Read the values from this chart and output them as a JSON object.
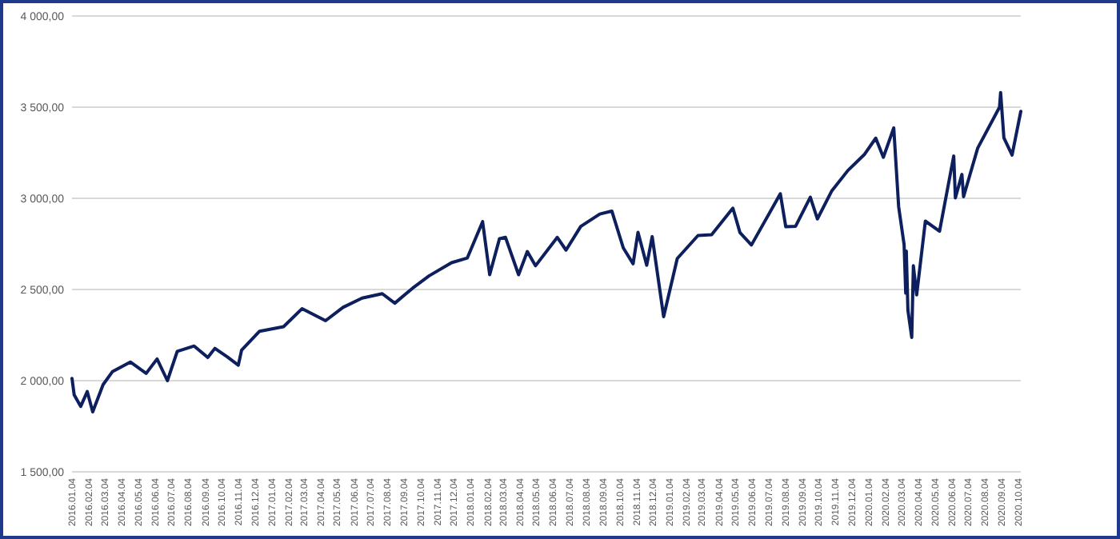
{
  "chart_data": {
    "type": "line",
    "grid": "y",
    "xlim": [
      "2016-01-04",
      "2020-10-09"
    ],
    "ylim": [
      1500,
      4000
    ],
    "yticks": [
      {
        "value": 1500,
        "label": "1 500,00"
      },
      {
        "value": 2000,
        "label": "2 000,00"
      },
      {
        "value": 2500,
        "label": "2 500,00"
      },
      {
        "value": 3000,
        "label": "3 000,00"
      },
      {
        "value": 3500,
        "label": "3 500,00"
      },
      {
        "value": 4000,
        "label": "4 000,00"
      }
    ],
    "xticks": [
      {
        "value": "2016-01-04",
        "label": "2016.01.04"
      },
      {
        "value": "2016-02-04",
        "label": "2016.02.04"
      },
      {
        "value": "2016-03-04",
        "label": "2016.03.04"
      },
      {
        "value": "2016-04-04",
        "label": "2016.04.04"
      },
      {
        "value": "2016-05-04",
        "label": "2016.05.04"
      },
      {
        "value": "2016-06-04",
        "label": "2016.06.04"
      },
      {
        "value": "2016-07-04",
        "label": "2016.07.04"
      },
      {
        "value": "2016-08-04",
        "label": "2016.08.04"
      },
      {
        "value": "2016-09-04",
        "label": "2016.09.04"
      },
      {
        "value": "2016-10-04",
        "label": "2016.10.04"
      },
      {
        "value": "2016-11-04",
        "label": "2016.11.04"
      },
      {
        "value": "2016-12-04",
        "label": "2016.12.04"
      },
      {
        "value": "2017-01-04",
        "label": "2017.01.04"
      },
      {
        "value": "2017-02-04",
        "label": "2017.02.04"
      },
      {
        "value": "2017-03-04",
        "label": "2017.03.04"
      },
      {
        "value": "2017-04-04",
        "label": "2017.04.04"
      },
      {
        "value": "2017-05-04",
        "label": "2017.05.04"
      },
      {
        "value": "2017-06-04",
        "label": "2017.06.04"
      },
      {
        "value": "2017-07-04",
        "label": "2017.07.04"
      },
      {
        "value": "2017-08-04",
        "label": "2017.08.04"
      },
      {
        "value": "2017-09-04",
        "label": "2017.09.04"
      },
      {
        "value": "2017-10-04",
        "label": "2017.10.04"
      },
      {
        "value": "2017-11-04",
        "label": "2017.11.04"
      },
      {
        "value": "2017-12-04",
        "label": "2017.12.04"
      },
      {
        "value": "2018-01-04",
        "label": "2018.01.04"
      },
      {
        "value": "2018-02-04",
        "label": "2018.02.04"
      },
      {
        "value": "2018-03-04",
        "label": "2018.03.04"
      },
      {
        "value": "2018-04-04",
        "label": "2018.04.04"
      },
      {
        "value": "2018-05-04",
        "label": "2018.05.04"
      },
      {
        "value": "2018-06-04",
        "label": "2018.06.04"
      },
      {
        "value": "2018-07-04",
        "label": "2018.07.04"
      },
      {
        "value": "2018-08-04",
        "label": "2018.08.04"
      },
      {
        "value": "2018-09-04",
        "label": "2018.09.04"
      },
      {
        "value": "2018-10-04",
        "label": "2018.10.04"
      },
      {
        "value": "2018-11-04",
        "label": "2018.11.04"
      },
      {
        "value": "2018-12-04",
        "label": "2018.12.04"
      },
      {
        "value": "2019-01-04",
        "label": "2019.01.04"
      },
      {
        "value": "2019-02-04",
        "label": "2019.02.04"
      },
      {
        "value": "2019-03-04",
        "label": "2019.03.04"
      },
      {
        "value": "2019-04-04",
        "label": "2019.04.04"
      },
      {
        "value": "2019-05-04",
        "label": "2019.05.04"
      },
      {
        "value": "2019-06-04",
        "label": "2019.06.04"
      },
      {
        "value": "2019-07-04",
        "label": "2019.07.04"
      },
      {
        "value": "2019-08-04",
        "label": "2019.08.04"
      },
      {
        "value": "2019-09-04",
        "label": "2019.09.04"
      },
      {
        "value": "2019-10-04",
        "label": "2019.10.04"
      },
      {
        "value": "2019-11-04",
        "label": "2019.11.04"
      },
      {
        "value": "2019-12-04",
        "label": "2019.12.04"
      },
      {
        "value": "2020-01-04",
        "label": "2020.01.04"
      },
      {
        "value": "2020-02-04",
        "label": "2020.02.04"
      },
      {
        "value": "2020-03-04",
        "label": "2020.03.04"
      },
      {
        "value": "2020-04-04",
        "label": "2020.04.04"
      },
      {
        "value": "2020-05-04",
        "label": "2020.05.04"
      },
      {
        "value": "2020-06-04",
        "label": "2020.06.04"
      },
      {
        "value": "2020-07-04",
        "label": "2020.07.04"
      },
      {
        "value": "2020-08-04",
        "label": "2020.08.04"
      },
      {
        "value": "2020-09-04",
        "label": "2020.09.04"
      },
      {
        "value": "2020-10-04",
        "label": "2020.10.04"
      }
    ],
    "series": [
      {
        "color": "#0d1f5c",
        "x": [
          "2016-01-04",
          "2016-01-08",
          "2016-01-20",
          "2016-02-01",
          "2016-02-11",
          "2016-03-01",
          "2016-03-18",
          "2016-04-20",
          "2016-05-19",
          "2016-06-08",
          "2016-06-27",
          "2016-07-15",
          "2016-08-15",
          "2016-09-09",
          "2016-09-22",
          "2016-10-14",
          "2016-11-04",
          "2016-11-10",
          "2016-12-13",
          "2017-01-26",
          "2017-03-01",
          "2017-04-13",
          "2017-05-15",
          "2017-06-19",
          "2017-07-26",
          "2017-08-18",
          "2017-09-20",
          "2017-10-20",
          "2017-11-30",
          "2017-12-29",
          "2018-01-26",
          "2018-02-08",
          "2018-02-26",
          "2018-03-09",
          "2018-04-02",
          "2018-04-18",
          "2018-05-03",
          "2018-06-12",
          "2018-06-28",
          "2018-07-25",
          "2018-08-29",
          "2018-09-20",
          "2018-10-11",
          "2018-10-29",
          "2018-11-07",
          "2018-11-23",
          "2018-12-03",
          "2018-12-24",
          "2019-01-18",
          "2019-02-25",
          "2019-03-22",
          "2019-04-30",
          "2019-05-13",
          "2019-06-03",
          "2019-07-26",
          "2019-08-05",
          "2019-08-23",
          "2019-09-19",
          "2019-10-02",
          "2019-10-28",
          "2019-11-27",
          "2019-12-27",
          "2020-01-17",
          "2020-01-31",
          "2020-02-19",
          "2020-02-28",
          "2020-03-09",
          "2020-03-12",
          "2020-03-13",
          "2020-03-16",
          "2020-03-23",
          "2020-03-26",
          "2020-04-01",
          "2020-04-17",
          "2020-05-13",
          "2020-06-08",
          "2020-06-11",
          "2020-06-23",
          "2020-06-26",
          "2020-07-22",
          "2020-08-31",
          "2020-09-02",
          "2020-09-08",
          "2020-09-23",
          "2020-10-09"
        ],
        "values": [
          2012,
          1922,
          1859,
          1940,
          1829,
          1978,
          2049,
          2102,
          2040,
          2119,
          2000,
          2161,
          2190,
          2127,
          2177,
          2132,
          2085,
          2167,
          2271,
          2296,
          2395,
          2329,
          2402,
          2453,
          2477,
          2425,
          2508,
          2575,
          2647,
          2673,
          2872,
          2581,
          2779,
          2786,
          2581,
          2708,
          2630,
          2786,
          2716,
          2846,
          2914,
          2930,
          2728,
          2641,
          2814,
          2633,
          2790,
          2351,
          2670,
          2796,
          2800,
          2946,
          2812,
          2744,
          3025,
          2844,
          2847,
          3006,
          2887,
          3039,
          3153,
          3240,
          3330,
          3225,
          3386,
          2954,
          2746,
          2480,
          2711,
          2386,
          2237,
          2630,
          2470,
          2875,
          2820,
          3232,
          3002,
          3131,
          3009,
          3276,
          3500,
          3580,
          3332,
          3237,
          3477
        ]
      }
    ]
  }
}
